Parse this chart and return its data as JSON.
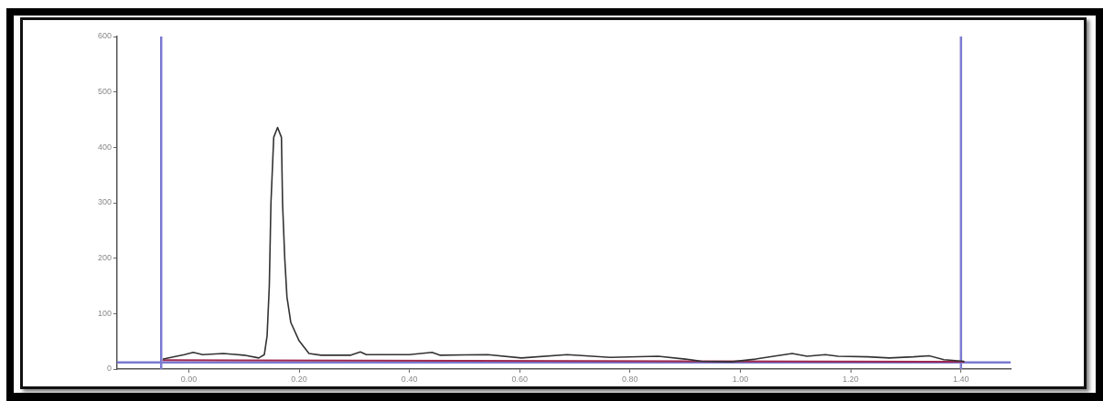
{
  "chart_data": {
    "type": "line",
    "xlim": [
      -0.13,
      1.49
    ],
    "ylim": [
      0,
      600
    ],
    "xticks": [
      {
        "value": 0,
        "label": "0.00"
      },
      {
        "value": 0.2,
        "label": "0.20"
      },
      {
        "value": 0.4,
        "label": "0.40"
      },
      {
        "value": 0.6,
        "label": "0.60"
      },
      {
        "value": 0.8,
        "label": "0.80"
      },
      {
        "value": 1.0,
        "label": "1.00"
      },
      {
        "value": 1.2,
        "label": "1.20"
      },
      {
        "value": 1.4,
        "label": "1.40"
      }
    ],
    "yticks": [
      0,
      100,
      200,
      300,
      400,
      500,
      600
    ],
    "grid": false,
    "legend": false,
    "series": [
      {
        "color": "#333333",
        "x": [
          -0.046,
          -0.008,
          0.008,
          0.025,
          0.063,
          0.1,
          0.127,
          0.137,
          0.142,
          0.146,
          0.149,
          0.154,
          0.161,
          0.168,
          0.17,
          0.174,
          0.178,
          0.185,
          0.2,
          0.218,
          0.24,
          0.294,
          0.311,
          0.322,
          0.4,
          0.441,
          0.455,
          0.542,
          0.603,
          0.686,
          0.764,
          0.851,
          0.9,
          0.929,
          0.983,
          1.028,
          1.066,
          1.094,
          1.121,
          1.154,
          1.177,
          1.231,
          1.27,
          1.314,
          1.342,
          1.369,
          1.405
        ],
        "values": [
          18,
          26,
          30,
          26,
          28,
          25,
          20,
          26,
          60,
          150,
          300,
          418,
          436,
          418,
          300,
          200,
          130,
          84,
          51,
          28,
          25,
          25,
          31,
          26,
          26,
          30,
          25,
          26,
          20,
          26,
          21,
          23,
          18,
          14,
          13,
          18,
          24,
          28,
          23,
          26,
          23,
          22,
          20,
          22,
          24,
          17,
          14
        ]
      },
      {
        "color": "#a0284f",
        "x": [
          -0.046,
          1.405
        ],
        "values": [
          16,
          13
        ]
      }
    ],
    "ref_lines": [
      {
        "axis": "x",
        "value": -0.05,
        "color": "#7a7ad0"
      },
      {
        "axis": "x",
        "value": 1.4,
        "color": "#7a7ad0"
      },
      {
        "axis": "y",
        "value": 12,
        "color": "#7a7ad0"
      }
    ]
  }
}
